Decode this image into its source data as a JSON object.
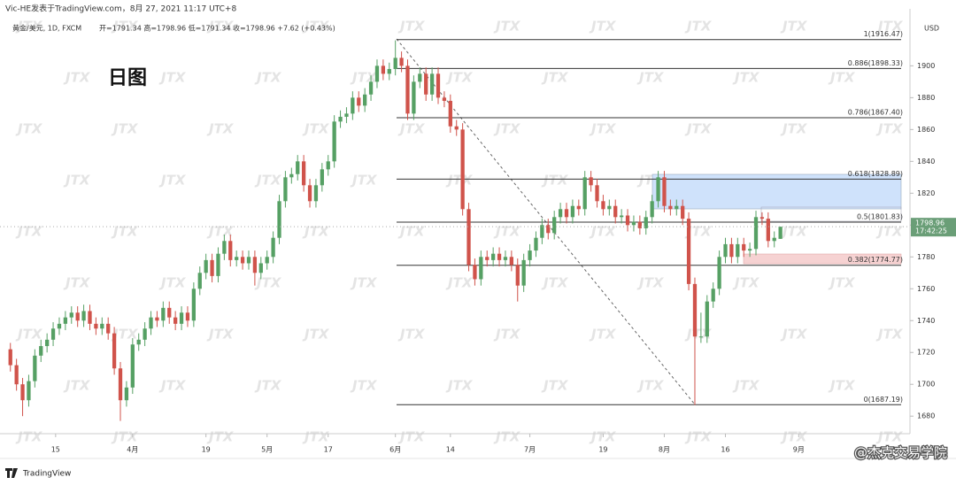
{
  "chart_data": {
    "type": "candlestick",
    "header": "Vic-HE发表于TradingView.com，8月 27, 2021 11:17 UTC+8",
    "symbol": "黄金/美元, 1D, FXCM",
    "ohlc_label": "开=1791.34 高=1798.96 低=1791.34 收=1798.96 +7.62 (+0.43%)",
    "title": "日图",
    "currency": "USD",
    "last_price_label": "1798.96",
    "countdown": "17:42:25",
    "watermark": "JTX",
    "brand": "TradingView",
    "credit": "@杰克交易学院",
    "up_color": "#56a064",
    "down_color": "#d0534b",
    "ylim": [
      1669,
      1933
    ],
    "yticks": [
      1680,
      1700,
      1720,
      1740,
      1760,
      1780,
      1800,
      1820,
      1840,
      1860,
      1880,
      1900
    ],
    "xlim": [
      -1.7,
      147.2
    ],
    "xticks": [
      {
        "value": 7.4,
        "label": "15"
      },
      {
        "value": 20,
        "label": "4月"
      },
      {
        "value": 32,
        "label": "19"
      },
      {
        "value": 42,
        "label": "5月"
      },
      {
        "value": 52,
        "label": "17"
      },
      {
        "value": 63,
        "label": "6月"
      },
      {
        "value": 72,
        "label": "14"
      },
      {
        "value": 85,
        "label": "7月"
      },
      {
        "value": 97,
        "label": "19"
      },
      {
        "value": 107,
        "label": "8月"
      },
      {
        "value": 117,
        "label": "16"
      },
      {
        "value": 129,
        "label": "9月"
      }
    ],
    "levels": [
      {
        "value": 1916.47,
        "label": "1(1916.47)"
      },
      {
        "value": 1898.33,
        "label": "0.886(1898.33)"
      },
      {
        "value": 1867.4,
        "label": "0.786(1867.40)"
      },
      {
        "value": 1828.89,
        "label": "0.618(1828.89)"
      },
      {
        "value": 1801.83,
        "label": "0.5(1801.83)"
      },
      {
        "value": 1774.77,
        "label": "0.382(1774.77)"
      },
      {
        "value": 1687.19,
        "label": "0(1687.19)"
      }
    ],
    "series": [
      {
        "open": [
          1722,
          1712,
          1700,
          1690,
          1702,
          1718,
          1724,
          1728,
          1735,
          1738,
          1742,
          1745,
          1740,
          1746,
          1738,
          1735,
          1738,
          1732,
          1710,
          1690,
          1698,
          1725,
          1728,
          1735,
          1742,
          1740,
          1748,
          1742,
          1738,
          1745,
          1740,
          1760,
          1770,
          1778,
          1768,
          1782,
          1790,
          1778,
          1780,
          1776,
          1780,
          1770,
          1776,
          1780,
          1792,
          1815,
          1830,
          1832,
          1840,
          1825,
          1815,
          1825,
          1835,
          1840,
          1865,
          1868,
          1870,
          1880,
          1875,
          1882,
          1890,
          1900,
          1895,
          1898,
          1905,
          1900,
          1870,
          1890,
          1895,
          1882,
          1895,
          1880,
          1878,
          1862,
          1860,
          1810,
          1775,
          1766,
          1780,
          1778,
          1782,
          1778,
          1780,
          1775,
          1762,
          1778,
          1784,
          1792,
          1800,
          1795,
          1805,
          1810,
          1805,
          1812,
          1810,
          1830,
          1825,
          1815,
          1810,
          1812,
          1805,
          1806,
          1800,
          1802,
          1798,
          1805,
          1815,
          1830,
          1812,
          1810,
          1812,
          1804,
          1763,
          1730,
          1730,
          1752,
          1760,
          1780,
          1788,
          1780,
          1788,
          1784,
          1785,
          1805,
          1804,
          1790,
          1791.34
        ],
        "high": [
          1726,
          1716,
          1704,
          1706,
          1722,
          1728,
          1732,
          1739,
          1742,
          1746,
          1749,
          1749,
          1750,
          1750,
          1742,
          1742,
          1742,
          1736,
          1714,
          1702,
          1729,
          1732,
          1739,
          1746,
          1746,
          1752,
          1752,
          1746,
          1749,
          1749,
          1764,
          1774,
          1782,
          1782,
          1786,
          1794,
          1794,
          1784,
          1784,
          1784,
          1784,
          1780,
          1784,
          1796,
          1819,
          1834,
          1836,
          1844,
          1844,
          1829,
          1829,
          1839,
          1844,
          1869,
          1872,
          1874,
          1884,
          1884,
          1886,
          1894,
          1904,
          1904,
          1902,
          1916,
          1909,
          1904,
          1894,
          1899,
          1899,
          1899,
          1899,
          1884,
          1882,
          1866,
          1864,
          1814,
          1779,
          1784,
          1784,
          1786,
          1786,
          1784,
          1784,
          1779,
          1782,
          1788,
          1796,
          1804,
          1804,
          1809,
          1814,
          1814,
          1816,
          1816,
          1834,
          1834,
          1829,
          1819,
          1816,
          1816,
          1810,
          1810,
          1806,
          1806,
          1809,
          1819,
          1834,
          1834,
          1816,
          1816,
          1816,
          1808,
          1767,
          1745,
          1756,
          1764,
          1784,
          1792,
          1792,
          1792,
          1792,
          1789,
          1809,
          1808,
          1808,
          1796,
          1798.96
        ],
        "low": [
          1708,
          1696,
          1680,
          1686,
          1698,
          1714,
          1720,
          1724,
          1731,
          1734,
          1738,
          1736,
          1736,
          1734,
          1731,
          1731,
          1728,
          1706,
          1677,
          1686,
          1694,
          1721,
          1724,
          1731,
          1736,
          1736,
          1738,
          1734,
          1734,
          1736,
          1736,
          1756,
          1766,
          1764,
          1764,
          1778,
          1774,
          1774,
          1772,
          1772,
          1762,
          1766,
          1772,
          1776,
          1788,
          1811,
          1826,
          1828,
          1821,
          1811,
          1811,
          1821,
          1831,
          1836,
          1861,
          1864,
          1866,
          1871,
          1871,
          1878,
          1886,
          1891,
          1891,
          1894,
          1896,
          1866,
          1866,
          1886,
          1878,
          1878,
          1876,
          1874,
          1858,
          1856,
          1806,
          1771,
          1762,
          1762,
          1774,
          1774,
          1774,
          1774,
          1771,
          1752,
          1758,
          1774,
          1780,
          1788,
          1791,
          1791,
          1801,
          1801,
          1801,
          1806,
          1806,
          1821,
          1811,
          1806,
          1806,
          1801,
          1801,
          1796,
          1796,
          1794,
          1794,
          1801,
          1811,
          1808,
          1806,
          1806,
          1800,
          1759,
          1687,
          1726,
          1726,
          1748,
          1756,
          1776,
          1776,
          1776,
          1780,
          1780,
          1781,
          1800,
          1786,
          1786,
          1791.34
        ],
        "close": [
          1712,
          1700,
          1690,
          1702,
          1718,
          1724,
          1728,
          1735,
          1738,
          1742,
          1745,
          1740,
          1746,
          1738,
          1735,
          1738,
          1732,
          1710,
          1690,
          1698,
          1725,
          1728,
          1735,
          1742,
          1740,
          1748,
          1742,
          1738,
          1745,
          1740,
          1760,
          1770,
          1778,
          1768,
          1782,
          1790,
          1778,
          1780,
          1776,
          1780,
          1770,
          1776,
          1780,
          1792,
          1815,
          1830,
          1832,
          1840,
          1825,
          1815,
          1825,
          1835,
          1840,
          1865,
          1868,
          1870,
          1880,
          1875,
          1882,
          1890,
          1900,
          1895,
          1898,
          1905,
          1900,
          1870,
          1890,
          1895,
          1882,
          1895,
          1880,
          1878,
          1862,
          1860,
          1810,
          1775,
          1766,
          1780,
          1778,
          1782,
          1778,
          1780,
          1775,
          1762,
          1778,
          1784,
          1792,
          1800,
          1795,
          1805,
          1810,
          1805,
          1812,
          1810,
          1830,
          1825,
          1815,
          1810,
          1812,
          1805,
          1806,
          1800,
          1802,
          1798,
          1805,
          1815,
          1830,
          1812,
          1810,
          1812,
          1804,
          1763,
          1730,
          1730,
          1752,
          1760,
          1780,
          1788,
          1780,
          1788,
          1784,
          1785,
          1805,
          1804,
          1790,
          1792,
          1798.96
        ]
      }
    ]
  }
}
